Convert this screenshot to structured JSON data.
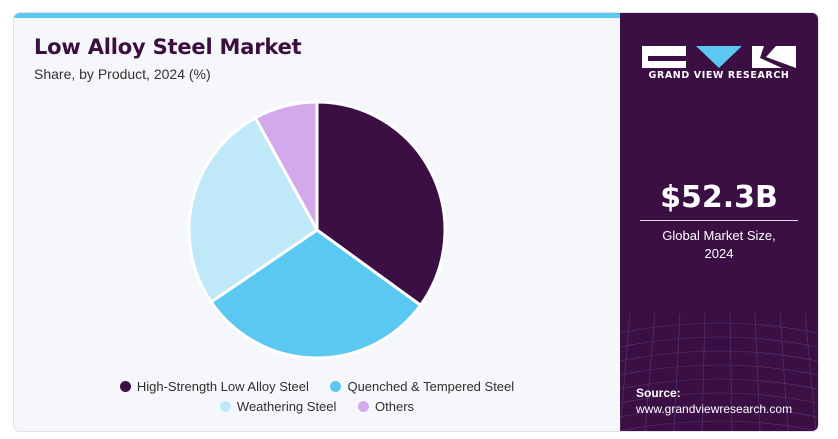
{
  "header": {
    "title": "Low Alloy Steel Market",
    "subtitle": "Share, by Product, 2024 (%)"
  },
  "chart_data": {
    "type": "pie",
    "title": "Low Alloy Steel Market",
    "subtitle": "Share, by Product, 2024 (%)",
    "categories": [
      "High-Strength Low Alloy Steel",
      "Quenched & Tempered Steel",
      "Weathering Steel",
      "Others"
    ],
    "values": [
      35,
      30.5,
      26.5,
      8
    ],
    "colors": [
      "#3b0f44",
      "#5ac8f0",
      "#bfe8f8",
      "#d4a9ec"
    ],
    "legend_position": "bottom"
  },
  "legend": {
    "items": [
      {
        "label": "High-Strength Low Alloy Steel",
        "color": "#3b0f44"
      },
      {
        "label": "Quenched & Tempered Steel",
        "color": "#5ac8f0"
      },
      {
        "label": "Weathering Steel",
        "color": "#bfe8f8"
      },
      {
        "label": "Others",
        "color": "#d4a9ec"
      }
    ]
  },
  "sidebar": {
    "brand": "GRAND VIEW RESEARCH",
    "market_size": "$52.3B",
    "market_size_label_line1": "Global Market Size,",
    "market_size_label_line2": "2024",
    "source_label": "Source:",
    "source_url": "www.grandviewresearch.com"
  },
  "colors": {
    "accent_bar": "#5ac8f0",
    "sidebar_bg": "#3b0f44",
    "title": "#3a0f3f"
  }
}
